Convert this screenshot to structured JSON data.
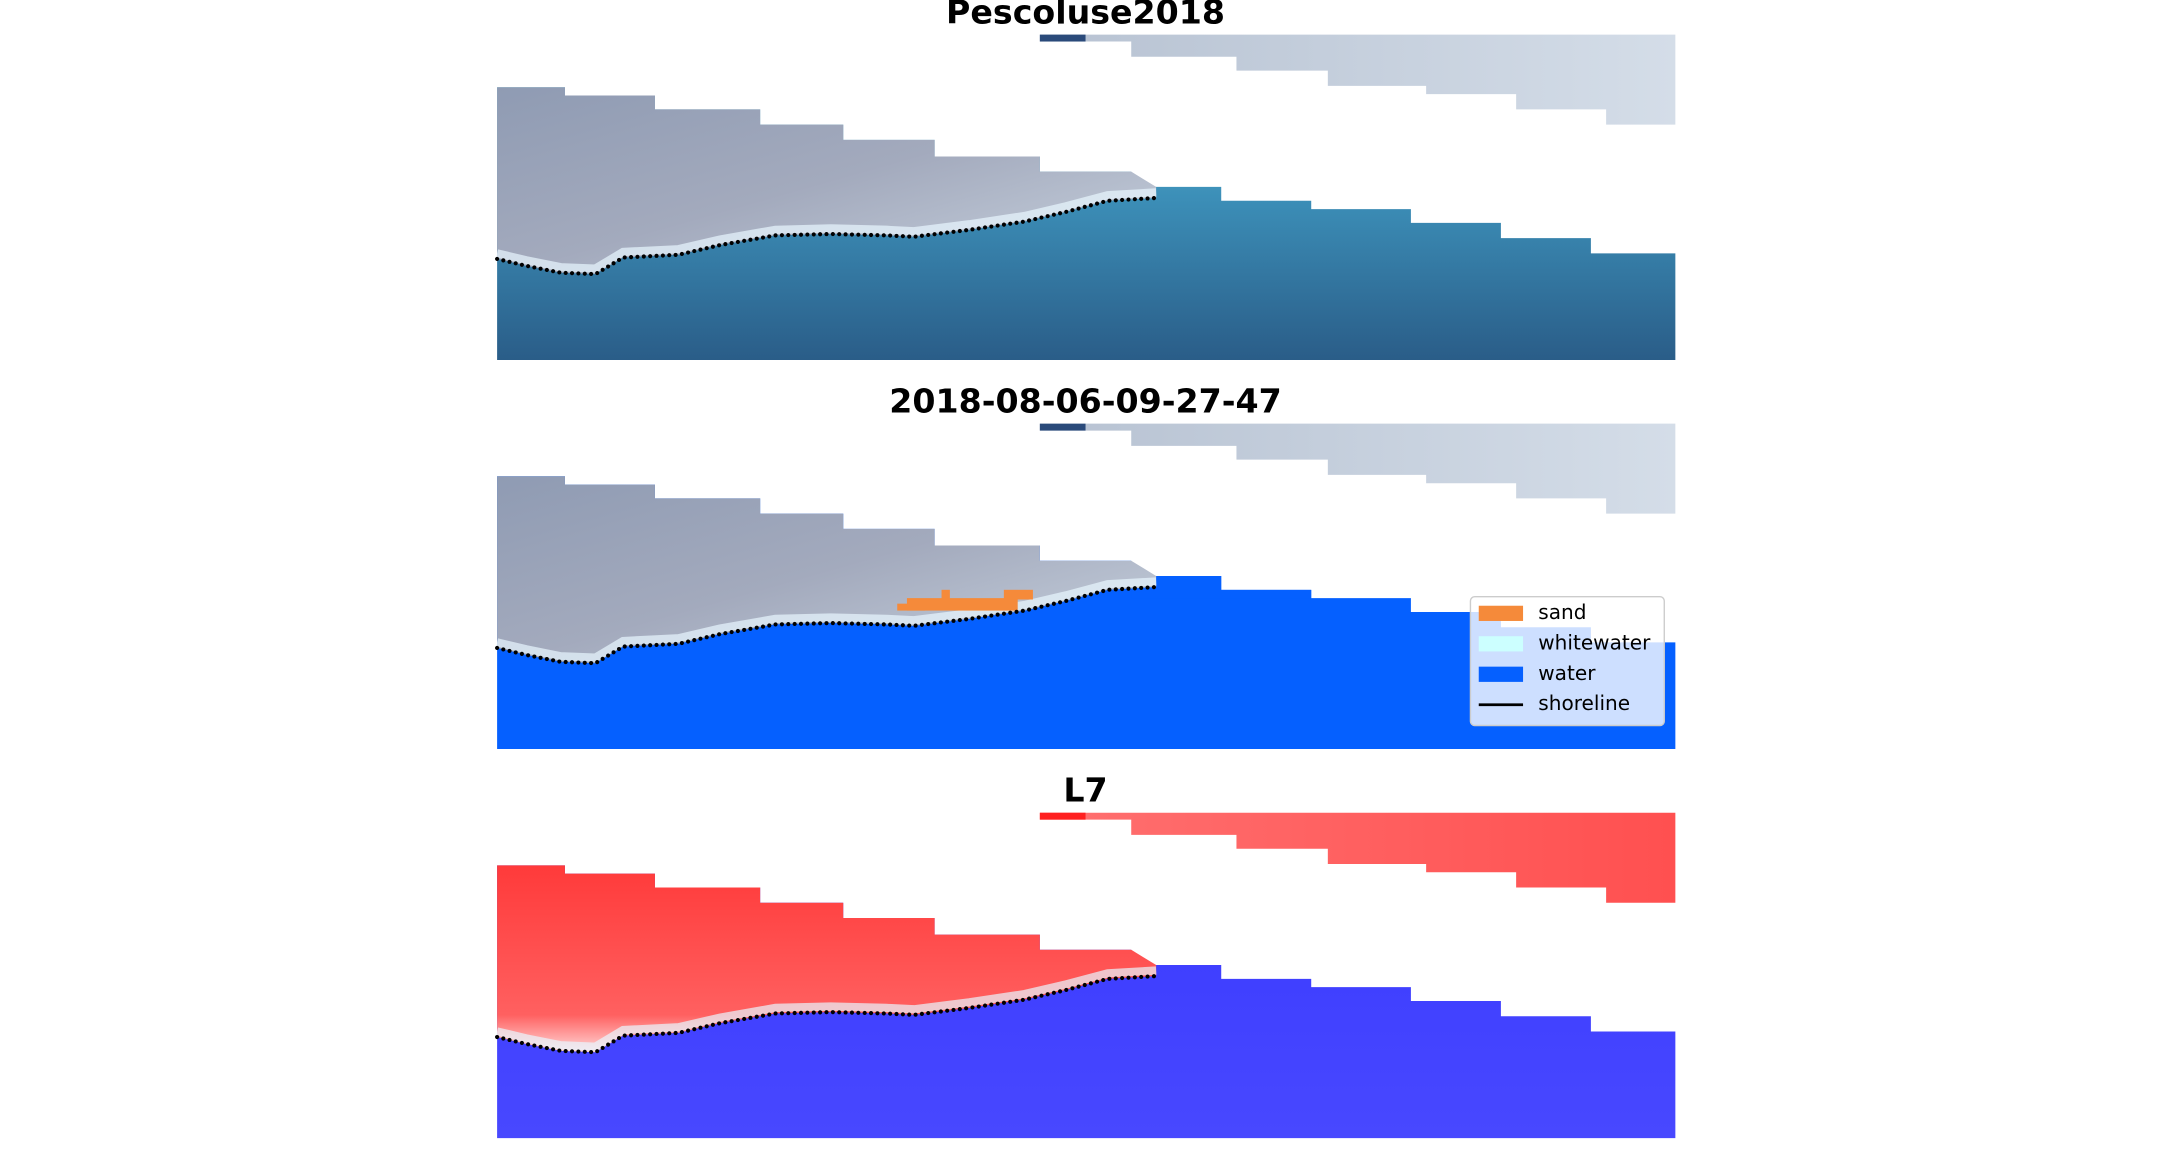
{
  "panels": [
    {
      "title": "Pescoluse2018",
      "style": "rgb"
    },
    {
      "title": "2018-08-06-09-27-47",
      "style": "classified"
    },
    {
      "title": "L7",
      "style": "index"
    }
  ],
  "legend": [
    {
      "label": "sand",
      "color": "#f58a3a",
      "kind": "patch"
    },
    {
      "label": "whitewater",
      "color": "#ccffff",
      "kind": "patch"
    },
    {
      "label": "water",
      "color": "#0560ff",
      "kind": "patch"
    },
    {
      "label": "shoreline",
      "color": "#000000",
      "kind": "line"
    }
  ]
}
